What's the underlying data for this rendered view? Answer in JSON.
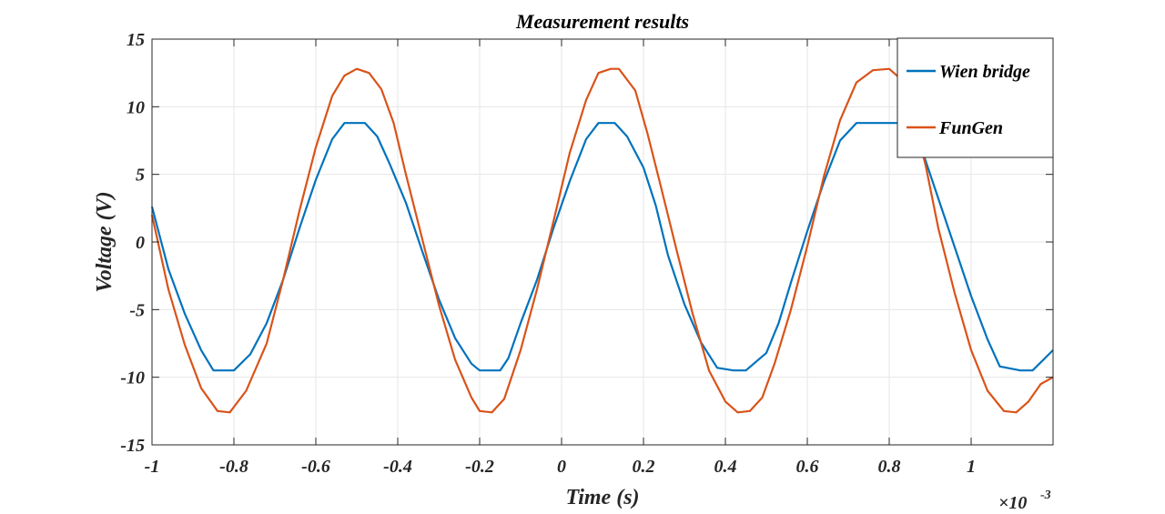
{
  "chart_data": {
    "type": "line",
    "title": "Measurement results",
    "xlabel": "Time (s)",
    "ylabel": "Voltage (V)",
    "x_exponent_label": "×10",
    "x_exponent": "-3",
    "xlim": [
      -1,
      1.2
    ],
    "ylim": [
      -15,
      15
    ],
    "x_ticks": [
      -1,
      -0.8,
      -0.6,
      -0.4,
      -0.2,
      0,
      0.2,
      0.4,
      0.6,
      0.8,
      1
    ],
    "x_tick_labels": [
      "-1",
      "-0.8",
      "-0.6",
      "-0.4",
      "-0.2",
      "0",
      "0.2",
      "0.4",
      "0.6",
      "0.8",
      "1"
    ],
    "y_ticks": [
      -15,
      -10,
      -5,
      0,
      5,
      10,
      15
    ],
    "y_tick_labels": [
      "-15",
      "-10",
      "-5",
      "0",
      "5",
      "10",
      "15"
    ],
    "grid": true,
    "legend_position": "top-right",
    "series": [
      {
        "name": "Wien bridge",
        "color": "#0072bd",
        "x": [
          -1.0,
          -0.96,
          -0.92,
          -0.88,
          -0.85,
          -0.8,
          -0.76,
          -0.72,
          -0.68,
          -0.64,
          -0.6,
          -0.56,
          -0.53,
          -0.48,
          -0.45,
          -0.42,
          -0.38,
          -0.34,
          -0.3,
          -0.26,
          -0.22,
          -0.2,
          -0.15,
          -0.13,
          -0.1,
          -0.06,
          -0.02,
          0.02,
          0.06,
          0.09,
          0.13,
          0.16,
          0.2,
          0.23,
          0.26,
          0.3,
          0.34,
          0.38,
          0.42,
          0.45,
          0.5,
          0.53,
          0.56,
          0.6,
          0.64,
          0.68,
          0.72,
          0.75,
          0.8,
          0.84,
          0.88,
          0.92,
          0.96,
          1.0,
          1.04,
          1.07,
          1.12,
          1.15,
          1.2
        ],
        "y": [
          2.6,
          -2.0,
          -5.3,
          -8.0,
          -9.5,
          -9.5,
          -8.3,
          -6.0,
          -2.8,
          1.0,
          4.6,
          7.6,
          8.8,
          8.8,
          7.8,
          5.8,
          2.9,
          -0.7,
          -4.2,
          -7.1,
          -9.0,
          -9.5,
          -9.5,
          -8.6,
          -6.0,
          -2.8,
          1.0,
          4.5,
          7.6,
          8.8,
          8.8,
          7.8,
          5.5,
          2.7,
          -1.0,
          -4.6,
          -7.4,
          -9.3,
          -9.5,
          -9.5,
          -8.2,
          -6.0,
          -3.0,
          0.8,
          4.4,
          7.5,
          8.8,
          8.8,
          8.8,
          8.8,
          6.8,
          3.2,
          -0.4,
          -4.0,
          -7.2,
          -9.2,
          -9.5,
          -9.5,
          -8.0
        ]
      },
      {
        "name": "FunGen",
        "color": "#d95319",
        "x": [
          -1.0,
          -0.96,
          -0.92,
          -0.88,
          -0.84,
          -0.81,
          -0.77,
          -0.72,
          -0.68,
          -0.64,
          -0.6,
          -0.56,
          -0.53,
          -0.5,
          -0.47,
          -0.44,
          -0.41,
          -0.38,
          -0.34,
          -0.3,
          -0.26,
          -0.22,
          -0.2,
          -0.17,
          -0.14,
          -0.1,
          -0.06,
          -0.02,
          0.02,
          0.06,
          0.09,
          0.12,
          0.14,
          0.18,
          0.21,
          0.24,
          0.28,
          0.32,
          0.36,
          0.4,
          0.43,
          0.46,
          0.49,
          0.52,
          0.56,
          0.6,
          0.64,
          0.68,
          0.72,
          0.76,
          0.8,
          0.83,
          0.86,
          0.89,
          0.92,
          0.96,
          1.0,
          1.04,
          1.08,
          1.11,
          1.14,
          1.17,
          1.2
        ],
        "y": [
          2.0,
          -3.5,
          -7.6,
          -10.8,
          -12.5,
          -12.6,
          -11.0,
          -7.5,
          -2.8,
          2.3,
          7.0,
          10.8,
          12.3,
          12.8,
          12.5,
          11.3,
          8.8,
          5.0,
          0.2,
          -4.6,
          -8.7,
          -11.5,
          -12.5,
          -12.6,
          -11.6,
          -8.0,
          -3.5,
          1.5,
          6.6,
          10.5,
          12.5,
          12.8,
          12.8,
          11.2,
          8.0,
          4.4,
          -0.5,
          -5.3,
          -9.5,
          -11.8,
          -12.6,
          -12.5,
          -11.5,
          -9.0,
          -5.0,
          -0.3,
          4.8,
          9.0,
          11.8,
          12.7,
          12.8,
          12.0,
          9.3,
          5.5,
          1.0,
          -3.8,
          -8.0,
          -11.0,
          -12.5,
          -12.6,
          -11.8,
          -10.5,
          -10.0
        ]
      }
    ]
  }
}
